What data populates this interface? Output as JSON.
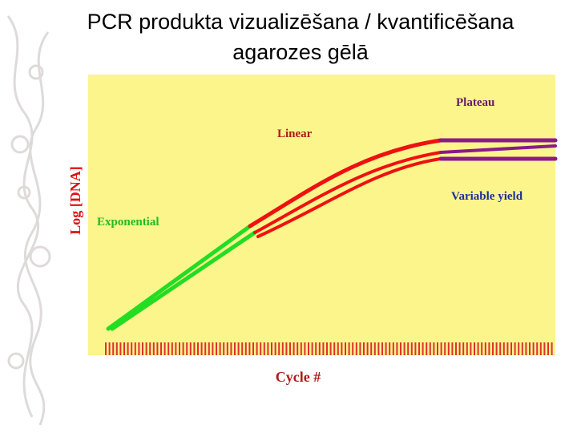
{
  "header": {
    "title_line1": "PCR produkta vizualizēšana / kvantificēšana",
    "title_line2": "agarozes gēlā"
  },
  "diagram": {
    "y_axis_label": "Log [DNA]",
    "x_axis_label": "Cycle #",
    "phases": {
      "exponential": "Exponential",
      "linear": "Linear",
      "plateau": "Plateau",
      "variable": "Variable yield"
    }
  }
}
